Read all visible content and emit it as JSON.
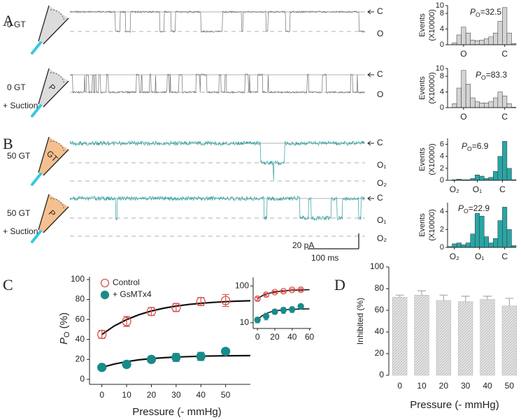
{
  "panels": {
    "a": "A",
    "b": "B",
    "c": "C",
    "d": "D"
  },
  "traces": {
    "rows": [
      {
        "label": "0 GT",
        "levels": [
          "C",
          "O"
        ]
      },
      {
        "label": "0 GT",
        "pipette_mark": "P",
        "note": "+ Suction",
        "levels": [
          "C",
          "O"
        ]
      },
      {
        "label": "50 GT",
        "pipette_mark": "GT",
        "levels": [
          "C",
          "O₁",
          "O₂"
        ]
      },
      {
        "label": "50 GT",
        "pipette_mark": "P",
        "note": "+ Suction",
        "levels": [
          "C",
          "O₁",
          "O₂"
        ]
      }
    ],
    "scale_bar": {
      "y": "20 pA",
      "x": "100 ms"
    }
  },
  "chart_data": [
    {
      "type": "histogram",
      "ylabel": [
        "Events",
        "(X10000)"
      ],
      "color": "#d4d4d4",
      "bins": [
        0,
        2,
        4,
        6,
        8,
        10,
        12,
        14,
        16,
        18,
        20,
        22,
        24,
        26,
        28,
        30
      ],
      "counts": [
        0,
        0.5,
        2.5,
        4.5,
        3,
        1.2,
        1,
        1.2,
        1.5,
        2,
        3,
        6,
        9.5,
        3,
        0.3
      ],
      "xlim": [
        0,
        30
      ],
      "xticks": [
        {
          "value": 7,
          "label": "O"
        },
        {
          "value": 25,
          "label": "C"
        }
      ],
      "ylim": [
        0,
        10
      ],
      "yticks": [
        0,
        4,
        8,
        10
      ],
      "annotation": {
        "symbol": "P",
        "sub": "O",
        "text": "=32.5"
      }
    },
    {
      "type": "histogram",
      "ylabel": [
        "Events",
        "(X10000)"
      ],
      "color": "#d4d4d4",
      "bins": [
        0,
        2,
        4,
        6,
        8,
        10,
        12,
        14,
        16,
        18,
        20,
        22,
        24,
        26,
        28,
        30
      ],
      "counts": [
        0,
        1,
        5,
        9.5,
        6,
        2.5,
        1.5,
        1.2,
        1.2,
        1.5,
        2.5,
        4,
        3,
        1,
        0.1
      ],
      "xlim": [
        0,
        30
      ],
      "xticks": [
        {
          "value": 7,
          "label": "O"
        },
        {
          "value": 25,
          "label": "C"
        }
      ],
      "ylim": [
        0,
        10
      ],
      "yticks": [
        0,
        4,
        8,
        10
      ],
      "annotation": {
        "symbol": "P",
        "sub": "O",
        "text": "=83.3"
      }
    },
    {
      "type": "histogram",
      "ylabel": [
        "Events",
        "(X10000)"
      ],
      "color": "#2aa5a5",
      "bins": [
        0,
        2,
        4,
        6,
        8,
        10,
        12,
        14,
        16,
        18,
        20,
        22,
        24,
        26,
        28,
        30
      ],
      "counts": [
        0,
        0.1,
        0.2,
        0.1,
        0.1,
        0.3,
        0.9,
        0.7,
        0.3,
        0.5,
        1.5,
        4,
        6.5,
        2,
        0.1
      ],
      "xlim": [
        0,
        30
      ],
      "xticks": [
        {
          "value": 3,
          "label": "O₂"
        },
        {
          "value": 13,
          "label": "O₁"
        },
        {
          "value": 24,
          "label": "C"
        }
      ],
      "ylim": [
        0,
        7
      ],
      "yticks": [
        0,
        2,
        4,
        6
      ],
      "annotation": {
        "symbol": "P",
        "sub": "O",
        "text": "=6.9"
      }
    },
    {
      "type": "histogram",
      "ylabel": [
        "Events",
        "(X10000)"
      ],
      "color": "#2aa5a5",
      "bins": [
        0,
        2,
        4,
        6,
        8,
        10,
        12,
        14,
        16,
        18,
        20,
        22,
        24,
        26,
        28,
        30
      ],
      "counts": [
        0.1,
        0.4,
        0.5,
        0.3,
        0.5,
        1.5,
        3.8,
        3.5,
        1.2,
        0.5,
        1,
        3,
        4.5,
        2,
        0.2
      ],
      "xlim": [
        0,
        30
      ],
      "xticks": [
        {
          "value": 3,
          "label": "O₂"
        },
        {
          "value": 14,
          "label": "O₁"
        },
        {
          "value": 25,
          "label": "C"
        }
      ],
      "ylim": [
        0,
        5
      ],
      "yticks": [
        0,
        2,
        4
      ],
      "annotation": {
        "symbol": "P",
        "sub": "O",
        "text": "=22.9"
      }
    },
    {
      "type": "line",
      "xlabel": "Pressure (- mmHg)",
      "ylabel": {
        "symbol": "P",
        "sub": "O",
        "text": " (%)"
      },
      "x": [
        0,
        10,
        20,
        30,
        40,
        50
      ],
      "series": [
        {
          "name": "Control",
          "color": "#d9534f",
          "marker": "open",
          "values": [
            45,
            58,
            68,
            72,
            78,
            79
          ],
          "errors": [
            4,
            5,
            4,
            4,
            4,
            6
          ]
        },
        {
          "name": "+ GsMTx4",
          "color": "#1a8a8a",
          "marker": "filled",
          "values": [
            12,
            15,
            20,
            22,
            23,
            28
          ],
          "errors": [
            2,
            3,
            3,
            4,
            4,
            3
          ]
        }
      ],
      "fits": [
        {
          "x": [
            0,
            5,
            10,
            15,
            20,
            25,
            30,
            35,
            40,
            45,
            50,
            55,
            60
          ],
          "values": [
            45,
            53.5,
            59.9,
            64.8,
            68.5,
            71.3,
            73.4,
            75,
            76.2,
            77.1,
            77.8,
            78.4,
            78.7
          ]
        },
        {
          "x": [
            0,
            5,
            10,
            15,
            20,
            25,
            30,
            35,
            40,
            45,
            50,
            55,
            60
          ],
          "values": [
            12,
            15.4,
            17.8,
            19.6,
            20.8,
            21.7,
            22.4,
            22.8,
            23.2,
            23.4,
            23.6,
            23.7,
            23.8
          ]
        }
      ],
      "xlim": [
        -5,
        60
      ],
      "xticks": [
        0,
        10,
        20,
        30,
        40,
        50
      ],
      "ylim": [
        -5,
        100
      ],
      "yticks": [
        0,
        20,
        40,
        60,
        80,
        100
      ],
      "legend": "upper-left",
      "inset": {
        "log_y": true,
        "xlim": [
          -5,
          62
        ],
        "xticks": [
          0,
          20,
          40,
          60
        ],
        "ylim": [
          7,
          170
        ],
        "yticks": [
          10,
          100
        ]
      }
    },
    {
      "type": "bar",
      "xlabel": "Pressure (- mmHg)",
      "ylabel": "Inhibited (%)",
      "color": "#d0d0d0",
      "categories": [
        "0",
        "10",
        "20",
        "30",
        "40",
        "50"
      ],
      "values": [
        72,
        74,
        69,
        68,
        70,
        64
      ],
      "errors": [
        2,
        4,
        5,
        5,
        3,
        7
      ],
      "ylim": [
        0,
        100
      ],
      "yticks": [
        0,
        20,
        40,
        60,
        80,
        100
      ]
    }
  ]
}
